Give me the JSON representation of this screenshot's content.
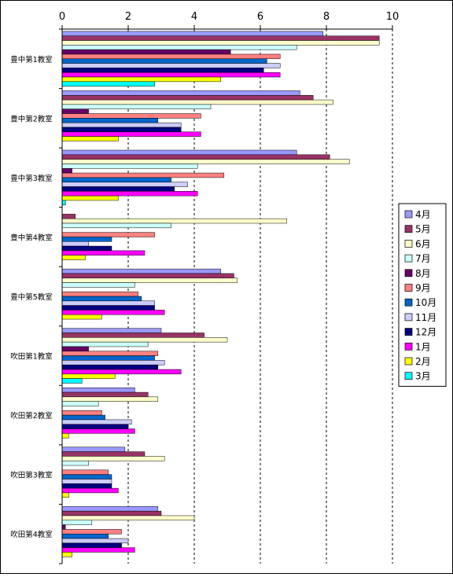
{
  "chart_data": {
    "type": "bar",
    "orientation": "horizontal",
    "title": "",
    "xlabel": "",
    "ylabel": "",
    "xlim": [
      0,
      10
    ],
    "x_ticks": [
      "0",
      "2",
      "4",
      "6",
      "8",
      "10"
    ],
    "grid": "vertical-dashed",
    "legend_position": "right",
    "categories": [
      "豊中第1教室",
      "豊中第2教室",
      "豊中第3教室",
      "豊中第4教室",
      "豊中第5教室",
      "吹田第1教室",
      "吹田第2教室",
      "吹田第3教室",
      "吹田第4教室"
    ],
    "series": [
      {
        "name": "4月",
        "color": "#9999ff",
        "values": [
          7.9,
          7.2,
          7.1,
          0,
          4.8,
          3.0,
          2.2,
          1.9,
          2.9
        ]
      },
      {
        "name": "5月",
        "color": "#993366",
        "values": [
          9.6,
          7.6,
          8.1,
          0.4,
          5.2,
          4.3,
          2.6,
          2.5,
          3.0
        ]
      },
      {
        "name": "6月",
        "color": "#ffffcc",
        "values": [
          9.6,
          8.2,
          8.7,
          6.8,
          5.3,
          5.0,
          2.9,
          3.1,
          4.0
        ]
      },
      {
        "name": "7月",
        "color": "#ccffff",
        "values": [
          7.1,
          4.5,
          4.1,
          3.3,
          2.2,
          2.6,
          1.1,
          0.8,
          0.9
        ]
      },
      {
        "name": "8月",
        "color": "#660066",
        "values": [
          5.1,
          0.8,
          0.3,
          0,
          0,
          0.8,
          0,
          0,
          0.1
        ]
      },
      {
        "name": "9月",
        "color": "#ff8080",
        "values": [
          6.6,
          4.2,
          4.9,
          2.8,
          2.3,
          2.9,
          1.2,
          1.4,
          1.8
        ]
      },
      {
        "name": "10月",
        "color": "#0066cc",
        "values": [
          6.2,
          2.9,
          3.3,
          1.5,
          2.4,
          2.8,
          1.3,
          1.5,
          1.4
        ]
      },
      {
        "name": "11月",
        "color": "#ccccff",
        "values": [
          6.6,
          3.6,
          3.8,
          0.8,
          2.8,
          3.1,
          2.1,
          1.5,
          2.0
        ]
      },
      {
        "name": "12月",
        "color": "#000080",
        "values": [
          6.1,
          3.6,
          3.4,
          1.5,
          2.8,
          2.9,
          2.0,
          1.5,
          1.8
        ]
      },
      {
        "name": "1月",
        "color": "#ff00ff",
        "values": [
          6.6,
          4.2,
          4.1,
          2.5,
          3.1,
          3.6,
          2.2,
          1.7,
          2.2
        ]
      },
      {
        "name": "2月",
        "color": "#ffff00",
        "values": [
          4.8,
          1.7,
          1.7,
          0.7,
          1.2,
          1.6,
          0.2,
          0.2,
          0.3
        ]
      },
      {
        "name": "3月",
        "color": "#00ffff",
        "values": [
          2.8,
          0,
          0.1,
          0,
          0,
          0.6,
          0,
          0,
          0
        ]
      }
    ]
  }
}
